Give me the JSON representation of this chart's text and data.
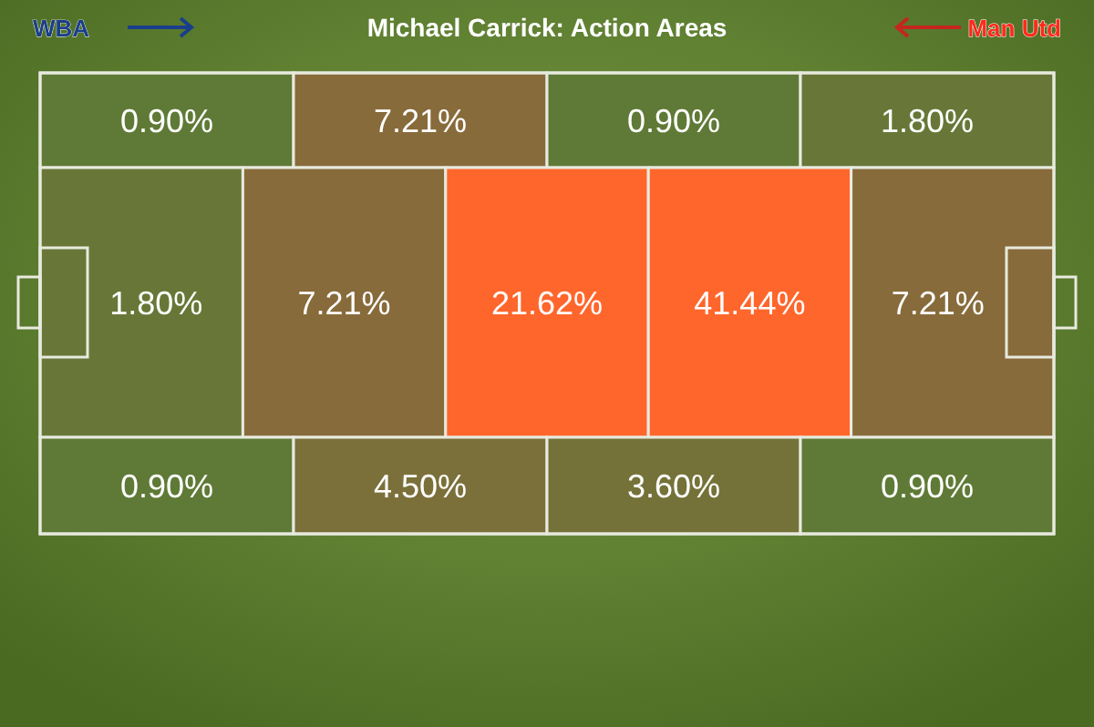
{
  "chart_data": {
    "type": "other",
    "title": "Michael Carrick: Action Areas",
    "annotations": [
      "WBA",
      "Man Utd"
    ],
    "categories": [
      null,
      null,
      null,
      null,
      null,
      null,
      null,
      null,
      null,
      null,
      null,
      null,
      null
    ],
    "values": [
      0.9,
      7.21,
      0.9,
      1.8,
      1.8,
      7.21,
      21.62,
      41.44,
      7.21,
      0.9,
      4.5,
      3.6,
      0.9
    ],
    "value_labels": [
      "0.90%",
      "7.21%",
      "0.90%",
      "1.80%",
      "1.80%",
      "7.21%",
      "21.62%",
      "41.44%",
      "7.21%",
      "0.90%",
      "4.50%",
      "3.60%",
      "0.90%"
    ]
  }
}
